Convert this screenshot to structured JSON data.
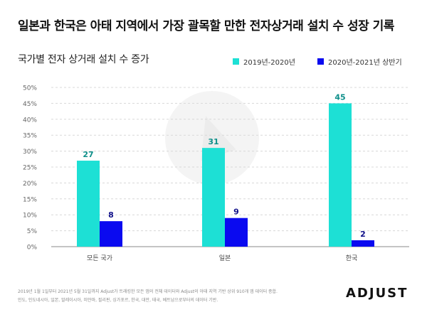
{
  "title": "일본과 한국은 아태 지역에서 가장 괄목할 만한 전자상거래 설치 수 성장 기록",
  "colors": {
    "series1": "#1de0d5",
    "series2": "#0a0af0",
    "grid": "#d8d8d8",
    "axis": "#888888"
  },
  "footnote": {
    "line1": "2019년 1월 1일부터 2021년 5월 31일까지 Adjust가 트래킹한 모든 앱의 전체 데이터와 Adjust의 아태 지역 기반 상위 910개 앱 데이터 종합.",
    "line2": "인도, 인도네시아, 일본, 말레이시아, 미얀마, 필리핀, 싱가포르, 한국, 대만, 태국, 베트남으로부터의 데이터 기반."
  },
  "logo": "ADJUST",
  "chart_data": {
    "type": "bar",
    "title": "국가별 전자 상거래 설치 수 증가",
    "categories": [
      "모든 국가",
      "일본",
      "한국"
    ],
    "series": [
      {
        "name": "2019년-2020년",
        "values": [
          27,
          31,
          45
        ],
        "labels": [
          "27",
          "31",
          "45"
        ]
      },
      {
        "name": "2020년-2021년 상반기",
        "values": [
          8,
          9,
          2
        ],
        "labels": [
          "8",
          "9",
          "2"
        ]
      }
    ],
    "ylim": [
      0,
      50
    ],
    "yticks": [
      0,
      5,
      10,
      15,
      20,
      25,
      30,
      35,
      40,
      45,
      50
    ],
    "ytick_labels": [
      "0%",
      "5%",
      "10%",
      "15%",
      "20%",
      "25%",
      "30%",
      "35%",
      "40%",
      "45%",
      "50%"
    ],
    "grid": true,
    "legend_position": "top-right"
  }
}
